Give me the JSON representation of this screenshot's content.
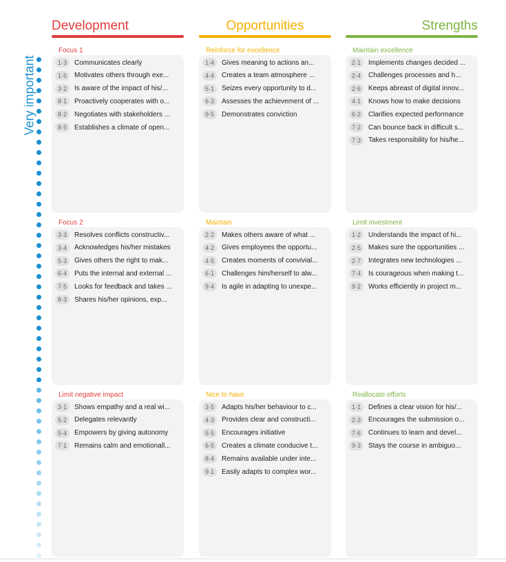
{
  "axis_label": "Very important",
  "columns": [
    {
      "title": "Development",
      "color": "#e03c3c"
    },
    {
      "title": "Opportunities",
      "color": "#f5b000"
    },
    {
      "title": "Strengths",
      "color": "#7cb342"
    }
  ],
  "rows": [
    [
      {
        "label": "Focus 1",
        "items": [
          {
            "code": "1·3",
            "text": "Communicates clearly"
          },
          {
            "code": "1·5",
            "text": "Motivates others through exe..."
          },
          {
            "code": "3·2",
            "text": "Is aware of the impact of his/..."
          },
          {
            "code": "8·1",
            "text": "Proactively cooperates with o..."
          },
          {
            "code": "8·2",
            "text": "Negotiates with stakeholders ..."
          },
          {
            "code": "8·5",
            "text": "Establishes a climate of open..."
          }
        ]
      },
      {
        "label": "Reinforce for excellence",
        "items": [
          {
            "code": "1·4",
            "text": "Gives meaning to actions an..."
          },
          {
            "code": "4·4",
            "text": "Creates a team atmosphere ..."
          },
          {
            "code": "5·1",
            "text": "Seizes every opportunity to d..."
          },
          {
            "code": "6·3",
            "text": "Assesses the achievement of ..."
          },
          {
            "code": "9·5",
            "text": "Demonstrates conviction"
          }
        ]
      },
      {
        "label": "Maintain excellence",
        "items": [
          {
            "code": "2·1",
            "text": "Implements changes decided ..."
          },
          {
            "code": "2·4",
            "text": "Challenges processes and h..."
          },
          {
            "code": "2·6",
            "text": "Keeps abreast of digital innov..."
          },
          {
            "code": "4·1",
            "text": "Knows how to make decisions"
          },
          {
            "code": "6·2",
            "text": "Clarifies expected performance"
          },
          {
            "code": "7·2",
            "text": "Can bounce back in difficult s..."
          },
          {
            "code": "7·3",
            "text": "Takes responsibility for his/he..."
          }
        ]
      }
    ],
    [
      {
        "label": "Focus 2",
        "items": [
          {
            "code": "3·3",
            "text": "Resolves conflicts constructiv..."
          },
          {
            "code": "3·4",
            "text": "Acknowledges his/her mistakes"
          },
          {
            "code": "5·3",
            "text": "Gives others the right to mak..."
          },
          {
            "code": "6·4",
            "text": "Puts the internal and external ..."
          },
          {
            "code": "7·5",
            "text": "Looks for feedback and takes ..."
          },
          {
            "code": "8·3",
            "text": "Shares his/her opinions, exp..."
          }
        ]
      },
      {
        "label": "Maintain",
        "items": [
          {
            "code": "2·2",
            "text": "Makes others aware of what ..."
          },
          {
            "code": "4·2",
            "text": "Gives employees the opportu..."
          },
          {
            "code": "4·5",
            "text": "Creates moments of convivial..."
          },
          {
            "code": "6·1",
            "text": "Challenges him/herself to alw..."
          },
          {
            "code": "9·4",
            "text": "Is agile in adapting to unexpe..."
          }
        ]
      },
      {
        "label": "Limit investment",
        "items": [
          {
            "code": "1·2",
            "text": "Understands the impact of hi..."
          },
          {
            "code": "2·5",
            "text": "Makes sure the opportunities ..."
          },
          {
            "code": "2·7",
            "text": "Integrates new technologies ..."
          },
          {
            "code": "7·4",
            "text": "Is courageous when making t..."
          },
          {
            "code": "9·2",
            "text": "Works efficiently in project m..."
          }
        ]
      }
    ],
    [
      {
        "label": "Limit negative impact",
        "items": [
          {
            "code": "3·1",
            "text": "Shows empathy and a real wi..."
          },
          {
            "code": "5·2",
            "text": "Delegates relevantly"
          },
          {
            "code": "5·4",
            "text": "Empowers by giving autonomy"
          },
          {
            "code": "7·1",
            "text": "Remains calm and emotionall..."
          }
        ]
      },
      {
        "label": "Nice to have",
        "items": [
          {
            "code": "3·5",
            "text": "Adapts his/her behaviour to c..."
          },
          {
            "code": "4·3",
            "text": "Provides clear and constructi..."
          },
          {
            "code": "5·5",
            "text": "Encourages initiative"
          },
          {
            "code": "6·5",
            "text": "Creates a climate conducive t..."
          },
          {
            "code": "8·4",
            "text": "Remains available under inte..."
          },
          {
            "code": "9·1",
            "text": "Easily adapts to complex wor..."
          }
        ]
      },
      {
        "label": "Reallocate efforts",
        "items": [
          {
            "code": "1·1",
            "text": "Defines a clear vision for his/..."
          },
          {
            "code": "2·3",
            "text": "Encourages the submission o..."
          },
          {
            "code": "7·6",
            "text": "Continues to learn and devel..."
          },
          {
            "code": "9·3",
            "text": "Stays the course in ambiguo..."
          }
        ]
      }
    ]
  ]
}
